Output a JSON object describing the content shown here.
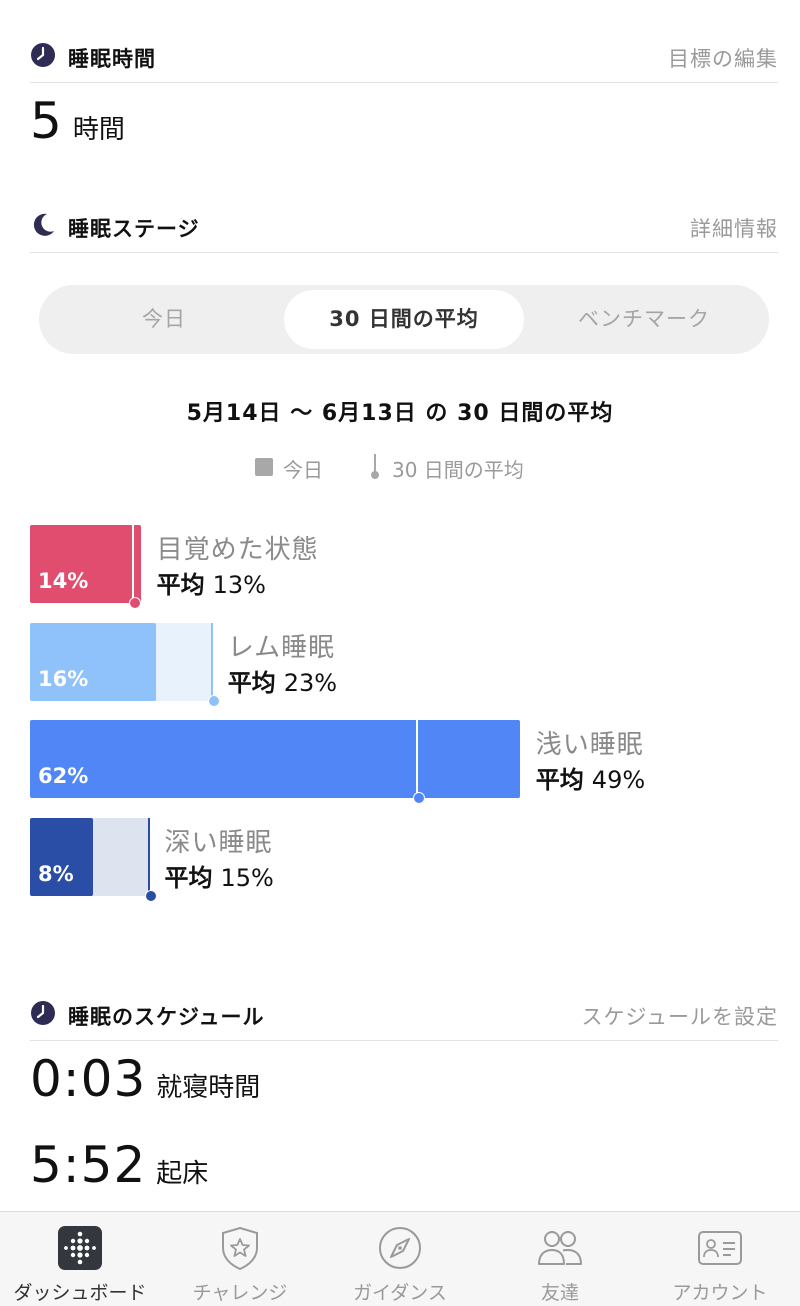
{
  "sleep_time": {
    "title": "睡眠時間",
    "edit_goal": "目標の編集",
    "value": "5",
    "unit": "時間"
  },
  "sleep_stages": {
    "title": "睡眠ステージ",
    "details": "詳細情報",
    "tabs": [
      "今日",
      "30 日間の平均",
      "ベンチマーク"
    ],
    "active_tab": "30 日間の平均",
    "period_title": "5月14日 〜 6月13日 の 30 日間の平均",
    "legend_today": "今日",
    "legend_avg": "30 日間の平均",
    "stages": [
      {
        "name": "目覚めた状態",
        "today": "14%",
        "avg_label": "平均",
        "avg": "13%",
        "today_value": 14,
        "avg_value": 13,
        "color": "#e04d6f",
        "ghost": "#fbe3ea"
      },
      {
        "name": "レム睡眠",
        "today": "16%",
        "avg_label": "平均",
        "avg": "23%",
        "today_value": 16,
        "avg_value": 23,
        "color": "#8fc1fb",
        "ghost": "#e8f2fd"
      },
      {
        "name": "浅い睡眠",
        "today": "62%",
        "avg_label": "平均",
        "avg": "49%",
        "today_value": 62,
        "avg_value": 49,
        "color": "#5086f5",
        "ghost": "#e6edfb"
      },
      {
        "name": "深い睡眠",
        "today": "8%",
        "avg_label": "平均",
        "avg": "15%",
        "today_value": 8,
        "avg_value": 15,
        "color": "#2a4ea6",
        "ghost": "#dde3ef"
      }
    ]
  },
  "schedule": {
    "title": "睡眠のスケジュール",
    "set": "スケジュールを設定",
    "bedtime": "0:03",
    "bedtime_label": "就寝時間",
    "wake": "5:52",
    "wake_label": "起床"
  },
  "tabbar": {
    "items": [
      {
        "label": "ダッシュボード",
        "icon": "dashboard-icon",
        "active": true
      },
      {
        "label": "チャレンジ",
        "icon": "challenge-shield-icon",
        "active": false
      },
      {
        "label": "ガイダンス",
        "icon": "compass-icon",
        "active": false
      },
      {
        "label": "友達",
        "icon": "friends-icon",
        "active": false
      },
      {
        "label": "アカウント",
        "icon": "account-card-icon",
        "active": false
      }
    ]
  }
}
